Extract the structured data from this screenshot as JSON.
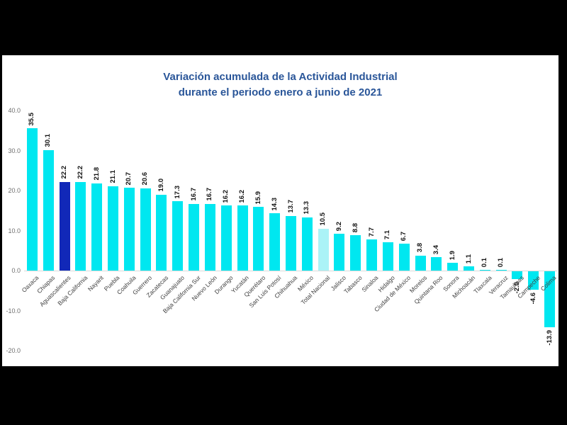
{
  "chart_data": {
    "type": "bar",
    "title_line1": "Variación acumulada de la Actividad Industrial",
    "title_line2": "durante el periodo enero a junio de 2021",
    "categories": [
      "Oaxaca",
      "Chiapas",
      "Aguascalientes",
      "Baja California",
      "Nayarit",
      "Puebla",
      "Coahuila",
      "Guerrero",
      "Zacatecas",
      "Guanajuato",
      "Baja California Sur",
      "Nuevo León",
      "Durango",
      "Yucatán",
      "Querétaro",
      "San Luis Potosí",
      "Chihuahua",
      "México",
      "Total Nacional",
      "Jalisco",
      "Tabasco",
      "Sinaloa",
      "Hidalgo",
      "Ciudad de México",
      "Morelos",
      "Quintana Roo",
      "Sonora",
      "Michoacán",
      "Tlaxcala",
      "Veracruz",
      "Tamaulipas",
      "Campeche",
      "Colima"
    ],
    "values": [
      35.5,
      30.1,
      22.2,
      22.2,
      21.8,
      21.1,
      20.7,
      20.6,
      19.0,
      17.3,
      16.7,
      16.7,
      16.2,
      16.2,
      15.9,
      14.3,
      13.7,
      13.3,
      10.5,
      9.2,
      8.8,
      7.7,
      7.1,
      6.7,
      3.8,
      3.4,
      1.9,
      1.1,
      0.1,
      0.1,
      -2.0,
      -4.6,
      -13.9
    ],
    "styles": [
      "normal",
      "normal",
      "highlight",
      "normal",
      "normal",
      "normal",
      "normal",
      "normal",
      "normal",
      "normal",
      "normal",
      "normal",
      "normal",
      "normal",
      "normal",
      "normal",
      "normal",
      "normal",
      "light",
      "normal",
      "normal",
      "normal",
      "normal",
      "normal",
      "normal",
      "normal",
      "normal",
      "normal",
      "normal",
      "normal",
      "normal",
      "normal",
      "normal"
    ],
    "yticks": [
      40.0,
      30.0,
      20.0,
      10.0,
      0.0,
      -10.0,
      -20.0
    ],
    "ylim": [
      -20.0,
      40.0
    ],
    "grid": false,
    "legend": false,
    "value_label_rotation": "vertical-bottom-to-top",
    "category_label_rotation": 45,
    "colors": {
      "bar_normal": "#00e7f0",
      "bar_highlight": "#1128b8",
      "bar_light": "#abf3f7",
      "title": "#2a5699",
      "tick_text": "#6e6e6e",
      "category_text": "#404040",
      "value_text": "#111111",
      "axis_line": "#d9d9d9",
      "canvas_bg": "#ffffff",
      "frame_bg": "#000000"
    }
  }
}
